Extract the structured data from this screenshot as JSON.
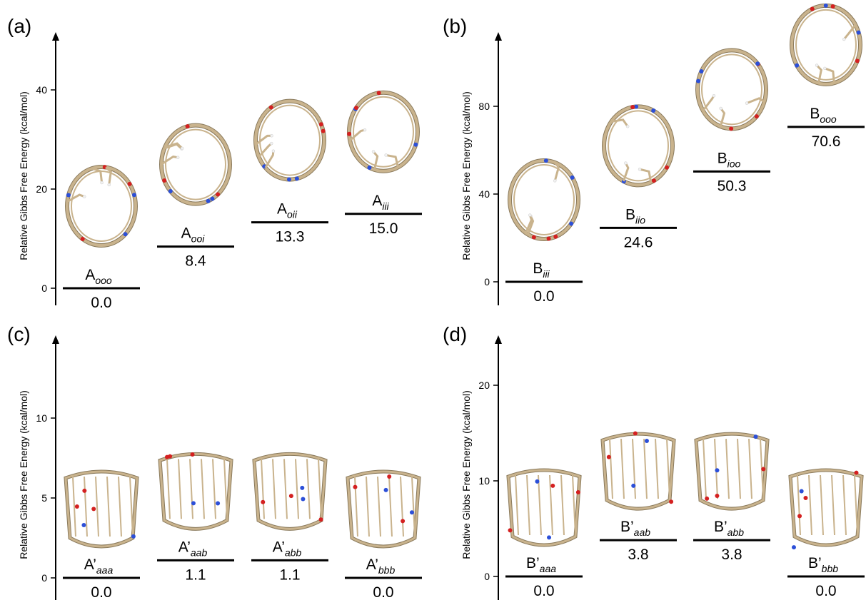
{
  "figure": {
    "colors": {
      "carbon": "#c9b38d",
      "carbon_dark": "#8a7a5c",
      "nitrogen": "#2c4fd8",
      "oxygen": "#d42020",
      "hydrogen": "#f2f2f2",
      "axis": "#000000"
    }
  },
  "chart_data": [
    {
      "panel_label": "(a)",
      "type": "energy_level_diagram",
      "ylabel": "Relative Gibbs Free Energy (kcal/mol)",
      "ylim": [
        -1.0,
        47.0
      ],
      "yticks": [
        0,
        20,
        40
      ],
      "levels": [
        {
          "base": "A",
          "sub": "ooo",
          "value": 0.0,
          "value_label": "0.0"
        },
        {
          "base": "A",
          "sub": "ooi",
          "value": 8.4,
          "value_label": "8.4"
        },
        {
          "base": "A",
          "sub": "oii",
          "value": 13.3,
          "value_label": "13.3"
        },
        {
          "base": "A",
          "sub": "iii",
          "value": 15.0,
          "value_label": "15.0"
        }
      ]
    },
    {
      "panel_label": "(b)",
      "type": "energy_level_diagram",
      "ylabel": "Relative Gibbs Free Energy (kcal/mol)",
      "ylim": [
        -5.0,
        109.0
      ],
      "yticks": [
        0,
        40,
        80
      ],
      "levels": [
        {
          "base": "B",
          "sub": "iii",
          "value": 0.0,
          "value_label": "0.0"
        },
        {
          "base": "B",
          "sub": "iio",
          "value": 24.6,
          "value_label": "24.6"
        },
        {
          "base": "B",
          "sub": "ioo",
          "value": 50.3,
          "value_label": "50.3"
        },
        {
          "base": "B",
          "sub": "ooo",
          "value": 70.6,
          "value_label": "70.6"
        }
      ]
    },
    {
      "panel_label": "(c)",
      "type": "energy_level_diagram",
      "ylabel": "Relative Gibbs Free Energy (kcal/mol)",
      "ylim": [
        -0.5,
        15.7
      ],
      "yticks": [
        0,
        5,
        10
      ],
      "levels": [
        {
          "base": "A’",
          "sub": "aaa",
          "value": 0.0,
          "value_label": "0.0"
        },
        {
          "base": "A’",
          "sub": "aab",
          "value": 1.1,
          "value_label": "1.1"
        },
        {
          "base": "A’",
          "sub": "abb",
          "value": 1.1,
          "value_label": "1.1"
        },
        {
          "base": "A’",
          "sub": "bbb",
          "value": 0.0,
          "value_label": "0.0"
        }
      ]
    },
    {
      "panel_label": "(d)",
      "type": "energy_level_diagram",
      "ylabel": "Relative Gibbs Free Energy (kcal/mol)",
      "ylim": [
        -0.8,
        26.5
      ],
      "yticks": [
        0,
        10,
        20
      ],
      "levels": [
        {
          "base": "B’",
          "sub": "aaa",
          "value": 0.0,
          "value_label": "0.0"
        },
        {
          "base": "B’",
          "sub": "aab",
          "value": 3.8,
          "value_label": "3.8"
        },
        {
          "base": "B’",
          "sub": "abb",
          "value": 3.8,
          "value_label": "3.8"
        },
        {
          "base": "B’",
          "sub": "bbb",
          "value": 0.0,
          "value_label": "0.0"
        }
      ]
    }
  ]
}
